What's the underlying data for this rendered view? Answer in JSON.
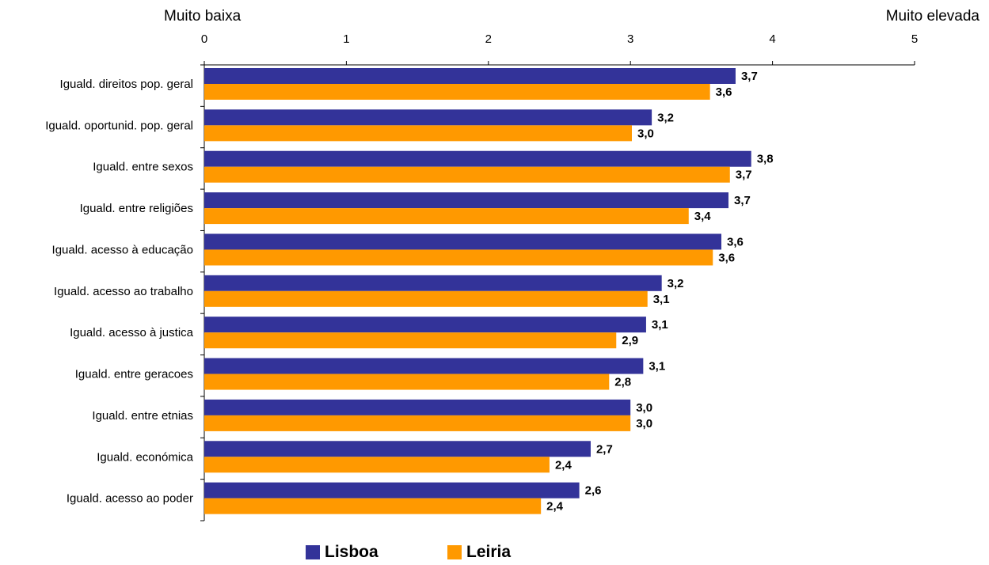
{
  "scale_labels": {
    "left": "Muito baixa",
    "right": "Muito elevada"
  },
  "colors": {
    "lisboa": "#333399",
    "leiria": "#FF9900",
    "axis": "#000000"
  },
  "legend": {
    "lisboa": "Lisboa",
    "leiria": "Leiria"
  },
  "chart_data": {
    "type": "bar",
    "orientation": "horizontal",
    "categories": [
      "Iguald. direitos pop. geral",
      "Iguald. oportunid. pop. geral",
      "Iguald. entre sexos",
      "Iguald. entre religiões",
      "Iguald. acesso à educação",
      "Iguald. acesso ao trabalho",
      "Iguald. acesso à justica",
      "Iguald. entre geracoes",
      "Iguald. entre etnias",
      "Iguald. económica",
      "Iguald. acesso ao poder"
    ],
    "series": [
      {
        "name": "Lisboa",
        "values": [
          3.74,
          3.15,
          3.85,
          3.69,
          3.64,
          3.22,
          3.11,
          3.09,
          3.0,
          2.72,
          2.64
        ],
        "labels": [
          "3,7",
          "3,2",
          "3,8",
          "3,7",
          "3,6",
          "3,2",
          "3,1",
          "3,1",
          "3,0",
          "2,7",
          "2,6"
        ]
      },
      {
        "name": "Leiria",
        "values": [
          3.56,
          3.01,
          3.7,
          3.41,
          3.58,
          3.12,
          2.9,
          2.85,
          3.0,
          2.43,
          2.37
        ],
        "labels": [
          "3,6",
          "3,0",
          "3,7",
          "3,4",
          "3,6",
          "3,1",
          "2,9",
          "2,8",
          "3,0",
          "2,4",
          "2,4"
        ]
      }
    ],
    "xlim": [
      0,
      5
    ],
    "ticks": [
      "0",
      "1",
      "2",
      "3",
      "4",
      "5"
    ],
    "grid": false,
    "legend_position": "bottom-center"
  }
}
